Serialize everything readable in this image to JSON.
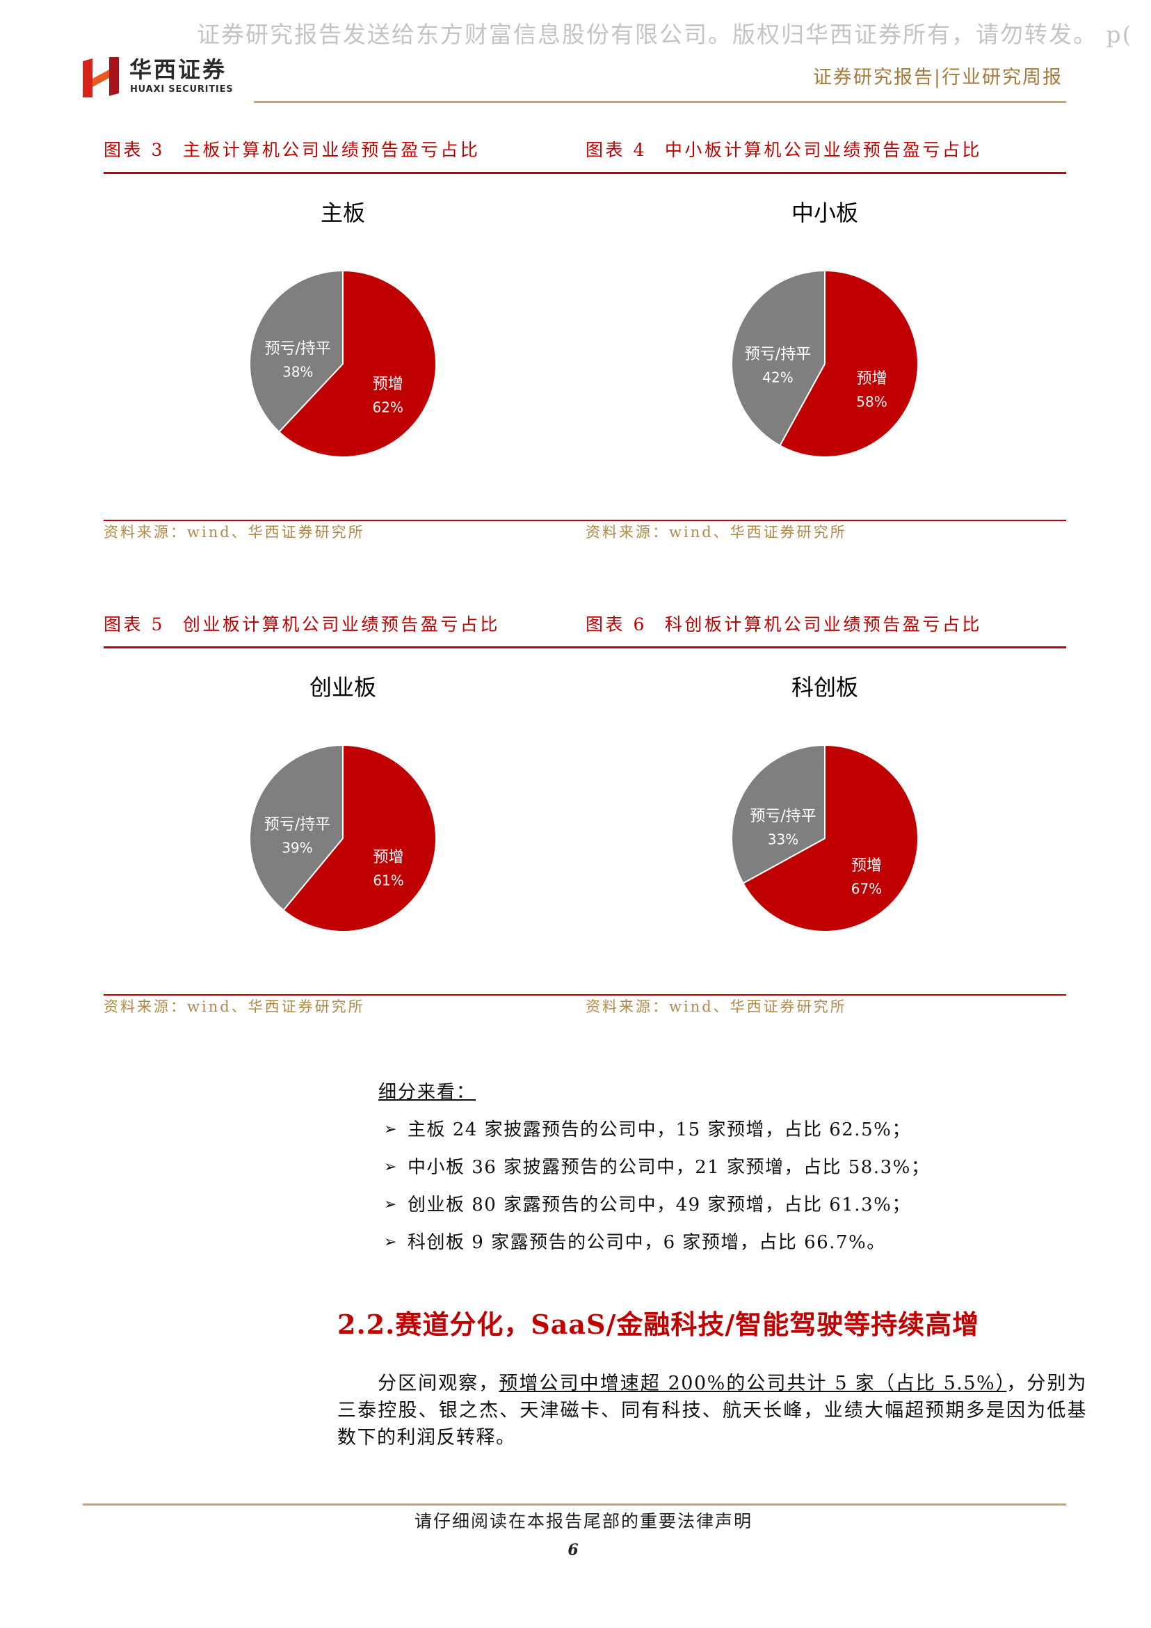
{
  "watermark": "证券研究报告发送给东方财富信息股份有限公司。版权归华西证券所有，请勿转发。 p(",
  "header": {
    "logo_name_cn": "华西证券",
    "logo_name_en": "HUAXI SECURITIES",
    "report_type": "证券研究报告|行业研究周报"
  },
  "figures": [
    {
      "label": "图表 3",
      "caption": "主板计算机公司业绩预告盈亏占比",
      "source": "资料来源：wind、华西证券研究所"
    },
    {
      "label": "图表 4",
      "caption": "中小板计算机公司业绩预告盈亏占比",
      "source": "资料来源：wind、华西证券研究所"
    },
    {
      "label": "图表 5",
      "caption": "创业板计算机公司业绩预告盈亏占比",
      "source": "资料来源：wind、华西证券研究所"
    },
    {
      "label": "图表 6",
      "caption": "科创板计算机公司业绩预告盈亏占比",
      "source": "资料来源：wind、华西证券研究所"
    }
  ],
  "chart_data": [
    {
      "type": "pie",
      "title": "主板",
      "categories": [
        "预增",
        "预亏/持平"
      ],
      "values": [
        62,
        38
      ],
      "data_labels": [
        "62%",
        "38%"
      ],
      "colors": [
        "#c00000",
        "#7f7f7f"
      ]
    },
    {
      "type": "pie",
      "title": "中小板",
      "categories": [
        "预增",
        "预亏/持平"
      ],
      "values": [
        58,
        42
      ],
      "data_labels": [
        "58%",
        "42%"
      ],
      "colors": [
        "#c00000",
        "#7f7f7f"
      ]
    },
    {
      "type": "pie",
      "title": "创业板",
      "categories": [
        "预增",
        "预亏/持平"
      ],
      "values": [
        61,
        39
      ],
      "data_labels": [
        "61%",
        "39%"
      ],
      "colors": [
        "#c00000",
        "#7f7f7f"
      ]
    },
    {
      "type": "pie",
      "title": "科创板",
      "categories": [
        "预增",
        "预亏/持平"
      ],
      "values": [
        67,
        33
      ],
      "data_labels": [
        "67%",
        "33%"
      ],
      "colors": [
        "#c00000",
        "#7f7f7f"
      ]
    }
  ],
  "body": {
    "intro": "细分来看：",
    "bullets": [
      "主板 24 家披露预告的公司中，15 家预增，占比 62.5%；",
      "中小板 36 家披露预告的公司中，21 家预增，占比 58.3%；",
      "创业板 80 家露预告的公司中，49 家预增，占比 61.3%；",
      "科创板 9 家露预告的公司中，6 家预增，占比 66.7%。"
    ],
    "section_heading": "2.2.赛道分化，SaaS/金融科技/智能驾驶等持续高增",
    "paragraph": {
      "lead": "分区间观察，",
      "underlined": "预增公司中增速超 200%的公司共计 5 家（占比 5.5%）",
      "rest": "，分别为三泰控股、银之杰、天津磁卡、同有科技、航天长峰，业绩大幅超预期多是因为低基数下的利润反转释。"
    }
  },
  "footer": {
    "disclaimer": "请仔细阅读在本报告尾部的重要法律声明",
    "page_number": "6"
  },
  "colors": {
    "accent_red": "#c00000",
    "gold": "#c9a468",
    "source_text": "#b08848",
    "watermark": "#c4c4c4"
  }
}
